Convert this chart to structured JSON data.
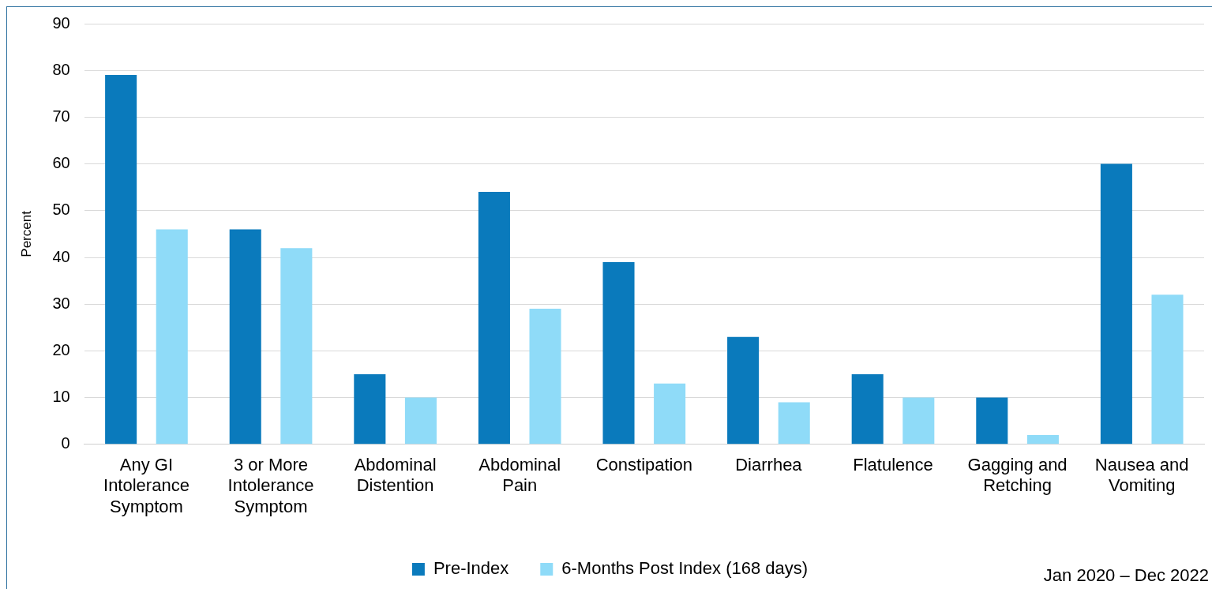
{
  "chart_data": {
    "type": "bar",
    "ylabel": "Percent",
    "categories": [
      "Any GI Intolerance Symptom",
      "3 or More Intolerance Symptom",
      "Abdominal Distention",
      "Abdominal Pain",
      "Constipation",
      "Diarrhea",
      "Flatulence",
      "Gagging and Retching",
      "Nausea and Vomiting"
    ],
    "series": [
      {
        "name": "Pre-Index",
        "color": "#0a7abc",
        "values": [
          79,
          46,
          15,
          54,
          39,
          23,
          15,
          10,
          60
        ]
      },
      {
        "name": "6-Months Post Index (168 days)",
        "color": "#8fdbf8",
        "values": [
          46,
          42,
          10,
          29,
          13,
          9,
          10,
          2,
          32
        ]
      }
    ],
    "ylim": [
      0,
      90
    ],
    "yticks": [
      0,
      10,
      20,
      30,
      40,
      50,
      60,
      70,
      80,
      90
    ],
    "grid": "y",
    "legend": "bottom",
    "annotations": [
      "Jan 2020 – Dec 2022"
    ]
  }
}
